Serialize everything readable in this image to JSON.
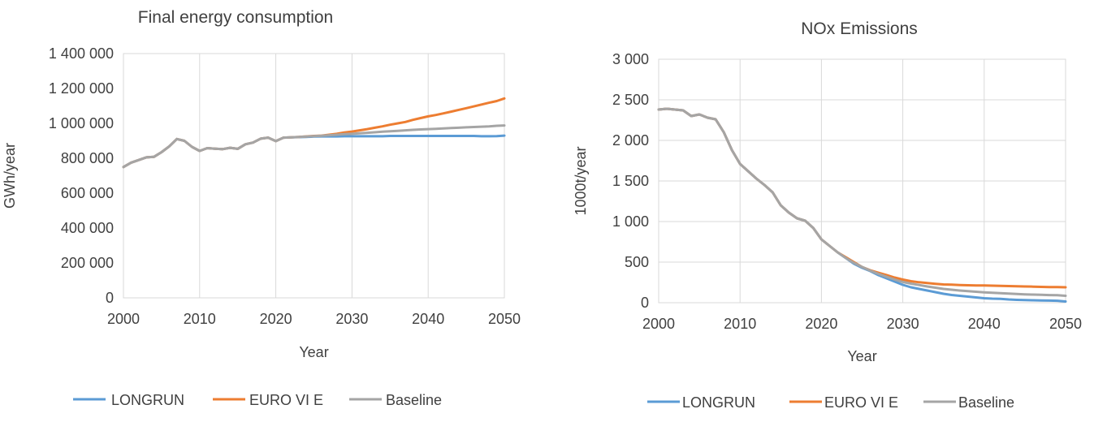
{
  "colors": {
    "LONGRUN": "#5b9bd5",
    "EURO VI E": "#ed7d31",
    "Baseline": "#a5a5a5"
  },
  "chart_data": [
    {
      "type": "line",
      "title": "Final energy consumption",
      "xlabel": "Year",
      "ylabel": "GWh/year",
      "xlim": [
        2000,
        2050
      ],
      "ylim": [
        0,
        1400000
      ],
      "xticks": [
        2000,
        2010,
        2020,
        2030,
        2040,
        2050
      ],
      "xtick_labels": [
        "2000",
        "2010",
        "2020",
        "2030",
        "2040",
        "2050"
      ],
      "yticks": [
        0,
        200000,
        400000,
        600000,
        800000,
        1000000,
        1200000,
        1400000
      ],
      "ytick_labels": [
        "0",
        "200 000",
        "400 000",
        "600 000",
        "800 000",
        "1 000 000",
        "1 200 000",
        "1 400 000"
      ],
      "grid": "vertical",
      "legend_position": "bottom",
      "x": [
        2000,
        2001,
        2002,
        2003,
        2004,
        2005,
        2006,
        2007,
        2008,
        2009,
        2010,
        2011,
        2012,
        2013,
        2014,
        2015,
        2016,
        2017,
        2018,
        2019,
        2020,
        2021,
        2022,
        2023,
        2024,
        2025,
        2026,
        2027,
        2028,
        2029,
        2030,
        2031,
        2032,
        2033,
        2034,
        2035,
        2036,
        2037,
        2038,
        2039,
        2040,
        2041,
        2042,
        2043,
        2044,
        2045,
        2046,
        2047,
        2048,
        2049,
        2050
      ],
      "series": [
        {
          "name": "LONGRUN",
          "values": [
            750000,
            775000,
            790000,
            805000,
            808000,
            835000,
            868000,
            910000,
            900000,
            865000,
            842000,
            858000,
            855000,
            852000,
            860000,
            854000,
            880000,
            890000,
            912000,
            918000,
            898000,
            918000,
            920000,
            921000,
            922000,
            924000,
            925000,
            925000,
            925000,
            926000,
            926000,
            926000,
            926000,
            926000,
            926000,
            928000,
            928000,
            928000,
            928000,
            928000,
            928000,
            928000,
            928000,
            928000,
            928000,
            928000,
            928000,
            926000,
            926000,
            927000,
            930000
          ]
        },
        {
          "name": "EURO VI E",
          "values": [
            750000,
            775000,
            790000,
            805000,
            808000,
            835000,
            868000,
            910000,
            900000,
            865000,
            842000,
            858000,
            855000,
            852000,
            860000,
            854000,
            880000,
            890000,
            912000,
            918000,
            898000,
            918000,
            920000,
            922000,
            925000,
            928000,
            930000,
            935000,
            940000,
            948000,
            953000,
            960000,
            967000,
            975000,
            983000,
            992000,
            1000000,
            1008000,
            1020000,
            1030000,
            1040000,
            1048000,
            1057000,
            1067000,
            1077000,
            1087000,
            1097000,
            1108000,
            1118000,
            1128000,
            1143000
          ]
        },
        {
          "name": "Baseline",
          "values": [
            750000,
            775000,
            790000,
            805000,
            808000,
            835000,
            868000,
            910000,
            900000,
            865000,
            842000,
            858000,
            855000,
            852000,
            860000,
            854000,
            880000,
            890000,
            912000,
            918000,
            898000,
            918000,
            920000,
            922000,
            924000,
            927000,
            929000,
            932000,
            935000,
            938000,
            940000,
            943000,
            946000,
            949000,
            952000,
            955000,
            957000,
            960000,
            963000,
            965000,
            967000,
            969000,
            971000,
            973000,
            975000,
            977000,
            979000,
            981000,
            983000,
            986000,
            988000
          ]
        }
      ]
    },
    {
      "type": "line",
      "title": "NOx Emissions",
      "xlabel": "Year",
      "ylabel": "1000t/year",
      "xlim": [
        2000,
        2050
      ],
      "ylim": [
        0,
        3000
      ],
      "xticks": [
        2000,
        2010,
        2020,
        2030,
        2040,
        2050
      ],
      "xtick_labels": [
        "2000",
        "2010",
        "2020",
        "2030",
        "2040",
        "2050"
      ],
      "yticks": [
        0,
        500,
        1000,
        1500,
        2000,
        2500,
        3000
      ],
      "ytick_labels": [
        "0",
        "500",
        "1 000",
        "1 500",
        "2 000",
        "2 500",
        "3 000"
      ],
      "grid": "both",
      "legend_position": "bottom",
      "x": [
        2000,
        2001,
        2002,
        2003,
        2004,
        2005,
        2006,
        2007,
        2008,
        2009,
        2010,
        2011,
        2012,
        2013,
        2014,
        2015,
        2016,
        2017,
        2018,
        2019,
        2020,
        2021,
        2022,
        2023,
        2024,
        2025,
        2026,
        2027,
        2028,
        2029,
        2030,
        2031,
        2032,
        2033,
        2034,
        2035,
        2036,
        2037,
        2038,
        2039,
        2040,
        2041,
        2042,
        2043,
        2044,
        2045,
        2046,
        2047,
        2048,
        2049,
        2050
      ],
      "series": [
        {
          "name": "LONGRUN",
          "values": [
            2380,
            2390,
            2380,
            2370,
            2300,
            2320,
            2280,
            2260,
            2100,
            1880,
            1710,
            1620,
            1530,
            1450,
            1360,
            1200,
            1110,
            1040,
            1010,
            920,
            780,
            700,
            620,
            550,
            480,
            430,
            390,
            340,
            300,
            260,
            220,
            190,
            170,
            150,
            130,
            110,
            95,
            85,
            75,
            65,
            55,
            50,
            48,
            40,
            35,
            32,
            30,
            28,
            26,
            24,
            15
          ]
        },
        {
          "name": "EURO VI E",
          "values": [
            2380,
            2390,
            2380,
            2370,
            2300,
            2320,
            2280,
            2260,
            2100,
            1880,
            1710,
            1620,
            1530,
            1450,
            1360,
            1200,
            1110,
            1040,
            1010,
            920,
            780,
            700,
            620,
            560,
            500,
            440,
            400,
            370,
            340,
            310,
            285,
            265,
            252,
            242,
            233,
            225,
            222,
            218,
            215,
            213,
            212,
            210,
            208,
            205,
            202,
            200,
            198,
            195,
            193,
            192,
            190
          ]
        },
        {
          "name": "Baseline",
          "values": [
            2380,
            2390,
            2380,
            2370,
            2300,
            2320,
            2280,
            2260,
            2100,
            1880,
            1710,
            1620,
            1530,
            1450,
            1360,
            1200,
            1110,
            1040,
            1010,
            920,
            780,
            700,
            620,
            550,
            490,
            440,
            395,
            355,
            320,
            285,
            255,
            235,
            218,
            200,
            185,
            170,
            160,
            150,
            142,
            135,
            128,
            122,
            118,
            112,
            108,
            103,
            100,
            97,
            94,
            92,
            85
          ]
        }
      ]
    }
  ]
}
